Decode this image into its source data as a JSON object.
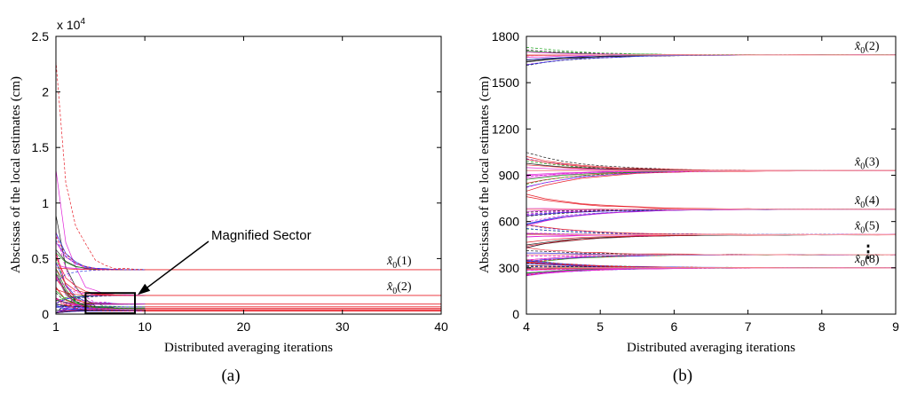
{
  "chart_data": [
    {
      "id": "a",
      "type": "line",
      "caption": "(a)",
      "xlabel": "Distributed averaging iterations",
      "ylabel": "Abscissas of the local estimates (cm)",
      "xlim": [
        1,
        40
      ],
      "ylim": [
        0,
        25000
      ],
      "x_ticks": [
        1,
        10,
        20,
        30,
        40
      ],
      "y_ticks": [
        {
          "v": 0,
          "label": "0"
        },
        {
          "v": 5000,
          "label": "0.5"
        },
        {
          "v": 10000,
          "label": "1"
        },
        {
          "v": 15000,
          "label": "1.5"
        },
        {
          "v": 20000,
          "label": "2"
        },
        {
          "v": 25000,
          "label": "2.5"
        }
      ],
      "y_multiplier": "x 10",
      "y_multiplier_exp": "4",
      "converged_values": [
        4000,
        1680,
        900,
        650,
        500,
        380,
        290
      ],
      "annotation": {
        "text": "Magnified Sector",
        "box_x": [
          4,
          9
        ],
        "box_y": [
          0,
          1900
        ]
      },
      "series_labels": [
        {
          "label": "x̂",
          "sub": "0",
          "index": "(1)",
          "y": 4000
        },
        {
          "label": "x̂",
          "sub": "0",
          "index": "(2)",
          "y": 1680
        }
      ]
    },
    {
      "id": "b",
      "type": "line",
      "caption": "(b)",
      "xlabel": "Distributed averaging iterations",
      "ylabel": "Abscissas of the local estimates (cm)",
      "xlim": [
        4,
        9
      ],
      "ylim": [
        0,
        1800
      ],
      "x_ticks": [
        4,
        5,
        6,
        7,
        8,
        9
      ],
      "y_ticks": [
        {
          "v": 0,
          "label": "0"
        },
        {
          "v": 300,
          "label": "300"
        },
        {
          "v": 600,
          "label": "600"
        },
        {
          "v": 900,
          "label": "900"
        },
        {
          "v": 1200,
          "label": "1200"
        },
        {
          "v": 1500,
          "label": "1500"
        },
        {
          "v": 1800,
          "label": "1800"
        }
      ],
      "converged_values": [
        1680,
        930,
        680,
        515,
        385,
        300
      ],
      "series_labels": [
        {
          "label": "x̂",
          "sub": "0",
          "index": "(2)",
          "y": 1680
        },
        {
          "label": "x̂",
          "sub": "0",
          "index": "(3)",
          "y": 930
        },
        {
          "label": "x̂",
          "sub": "0",
          "index": "(4)",
          "y": 680
        },
        {
          "label": "x̂",
          "sub": "0",
          "index": "(5)",
          "y": 515
        },
        {
          "label": "x̂",
          "sub": "0",
          "index": "(8)",
          "y": 300
        }
      ],
      "ellipsis": "⋮"
    }
  ],
  "colors": {
    "red": "#e8202a",
    "magenta": "#e020d8",
    "blue": "#2830e0",
    "green": "#18a018",
    "black": "#202020",
    "light_red": "#f49aa0"
  }
}
